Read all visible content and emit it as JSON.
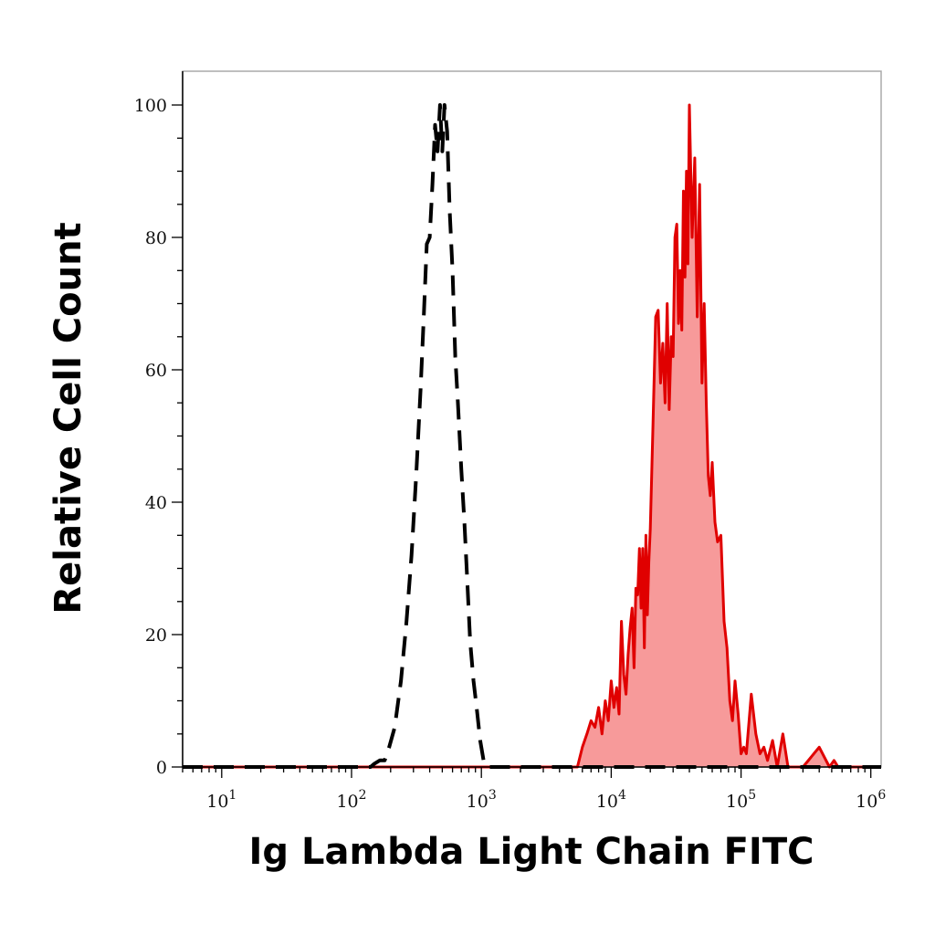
{
  "chart_data": {
    "type": "area",
    "title": "",
    "xlabel": "Ig Lambda Light Chain FITC",
    "ylabel": "Relative Cell Count",
    "x_scale": "log",
    "xlim": [
      5,
      1200000
    ],
    "ylim": [
      0,
      100
    ],
    "x_ticks": [
      {
        "value": 10,
        "base": "10",
        "exp": "1"
      },
      {
        "value": 100,
        "base": "10",
        "exp": "2"
      },
      {
        "value": 1000,
        "base": "10",
        "exp": "3"
      },
      {
        "value": 10000,
        "base": "10",
        "exp": "4"
      },
      {
        "value": 100000,
        "base": "10",
        "exp": "5"
      },
      {
        "value": 1000000,
        "base": "10",
        "exp": "6"
      }
    ],
    "y_ticks": [
      {
        "value": 0,
        "label": "0"
      },
      {
        "value": 20,
        "label": "20"
      },
      {
        "value": 40,
        "label": "40"
      },
      {
        "value": 60,
        "label": "60"
      },
      {
        "value": 80,
        "label": "80"
      },
      {
        "value": 100,
        "label": "100"
      }
    ],
    "grid": false,
    "colors": {
      "stained": "#e00000",
      "stained_fill": "#f79a9a",
      "control": "#000000"
    },
    "series": [
      {
        "style": "dashed-line",
        "x": [
          5,
          140,
          150,
          165,
          180,
          195,
          215,
          240,
          265,
          290,
          315,
          340,
          360,
          380,
          400,
          420,
          440,
          460,
          480,
          500,
          520,
          545,
          570,
          600,
          630,
          660,
          700,
          740,
          780,
          820,
          870,
          920,
          980,
          1040,
          1100,
          1200,
          2000,
          10000,
          1200000
        ],
        "y": [
          0,
          0,
          0.5,
          1,
          1,
          3,
          6,
          13,
          22,
          32,
          44,
          57,
          68,
          79,
          80,
          88,
          97,
          93,
          100,
          93,
          100,
          96,
          84,
          75,
          62,
          55,
          45,
          37,
          28,
          19,
          13,
          9,
          4,
          1,
          0,
          0,
          0,
          0,
          0
        ]
      },
      {
        "style": "filled-line",
        "x": [
          5,
          1000,
          5500,
          6000,
          6500,
          7000,
          7500,
          8000,
          8500,
          9000,
          9500,
          10000,
          10500,
          11000,
          11500,
          12000,
          12500,
          13000,
          13500,
          14000,
          14500,
          15000,
          15500,
          16000,
          16500,
          17000,
          17500,
          18000,
          18500,
          19000,
          19500,
          20000,
          21000,
          22000,
          23000,
          24000,
          25000,
          26000,
          27000,
          28000,
          29000,
          30000,
          31000,
          32000,
          33000,
          34000,
          35000,
          36000,
          37000,
          38000,
          39000,
          40000,
          42000,
          44000,
          46000,
          48000,
          50000,
          52000,
          54000,
          56000,
          58000,
          60000,
          63000,
          66000,
          70000,
          74000,
          78000,
          82000,
          86000,
          90000,
          95000,
          100000,
          105000,
          110000,
          120000,
          130000,
          140000,
          150000,
          160000,
          175000,
          190000,
          210000,
          230000,
          260000,
          300000,
          400000,
          480000,
          520000,
          560000,
          700000,
          1200000
        ],
        "y": [
          0,
          0,
          0,
          3,
          5,
          7,
          6,
          9,
          5,
          10,
          7,
          13,
          9,
          12,
          8,
          22,
          14,
          11,
          17,
          21,
          24,
          15,
          27,
          26,
          33,
          24,
          33,
          18,
          35,
          23,
          31,
          36,
          52,
          68,
          69,
          58,
          64,
          55,
          70,
          54,
          65,
          62,
          80,
          82,
          67,
          75,
          66,
          87,
          74,
          90,
          76,
          100,
          80,
          92,
          68,
          88,
          58,
          70,
          55,
          44,
          41,
          46,
          37,
          34,
          35,
          22,
          18,
          10,
          7,
          13,
          8,
          2,
          3,
          2,
          11,
          5,
          2,
          3,
          1,
          4,
          0,
          5,
          0,
          0,
          0,
          3,
          0,
          1,
          0,
          0,
          0
        ]
      }
    ]
  }
}
